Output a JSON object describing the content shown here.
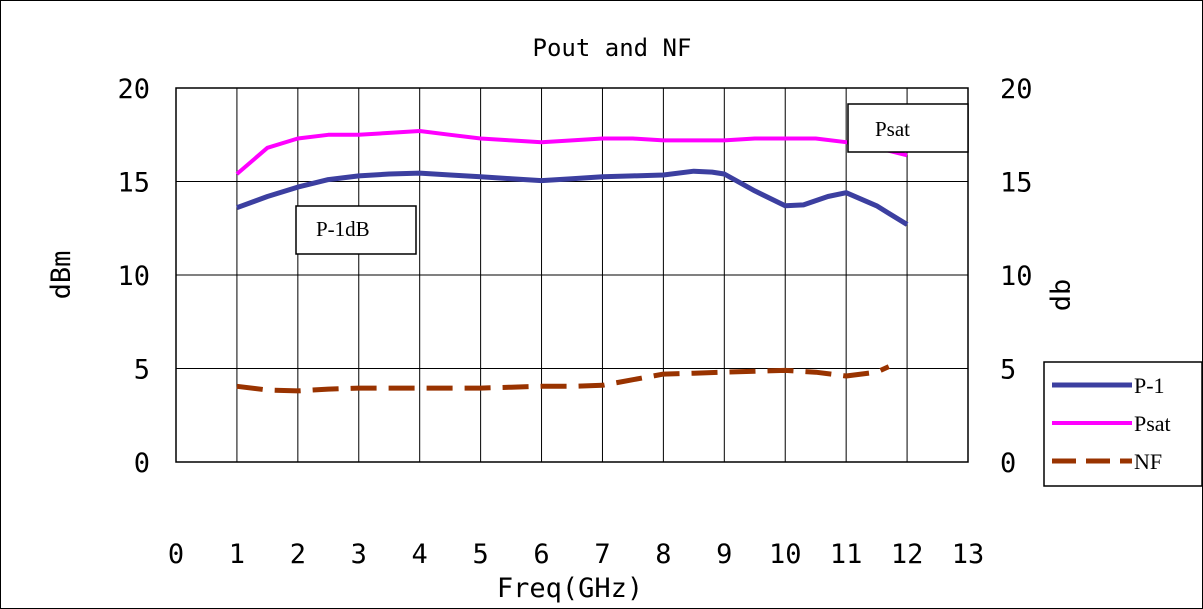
{
  "chart_data": {
    "type": "line",
    "title": "Pout and NF",
    "xlabel": "Freq(GHz)",
    "ylabel": "dBm",
    "ylabel_right": "db",
    "xlim": [
      0,
      13
    ],
    "ylim": [
      0,
      20
    ],
    "x_ticks": [
      "0",
      "1",
      "2",
      "3",
      "4",
      "5",
      "6",
      "7",
      "8",
      "9",
      "10",
      "11",
      "12",
      "13"
    ],
    "y_ticks": [
      "0",
      "5",
      "10",
      "15",
      "20"
    ],
    "y_ticks_right": [
      "0",
      "5",
      "10",
      "15",
      "20"
    ],
    "grid": true,
    "legend_position": "right",
    "series": [
      {
        "name": "P-1",
        "color": "#3c3fa0",
        "style": "solid-thick",
        "x": [
          1,
          1.5,
          2,
          2.5,
          3,
          3.5,
          4,
          4.5,
          5,
          5.5,
          6,
          6.5,
          7,
          7.5,
          8,
          8.5,
          8.8,
          9,
          9.5,
          10,
          10.3,
          10.7,
          11,
          11.5,
          12
        ],
        "y": [
          13.6,
          14.2,
          14.7,
          15.1,
          15.3,
          15.4,
          15.45,
          15.35,
          15.25,
          15.15,
          15.05,
          15.15,
          15.25,
          15.3,
          15.35,
          15.55,
          15.5,
          15.4,
          14.5,
          13.7,
          13.75,
          14.2,
          14.4,
          13.7,
          12.7
        ]
      },
      {
        "name": "Psat",
        "color": "#ff00ff",
        "style": "solid",
        "x": [
          1,
          1.5,
          2,
          2.5,
          3,
          3.5,
          4,
          4.5,
          5,
          5.5,
          6,
          6.5,
          7,
          7.5,
          8,
          8.5,
          9,
          9.5,
          10,
          10.5,
          11,
          11.5,
          12
        ],
        "y": [
          15.4,
          16.8,
          17.3,
          17.5,
          17.5,
          17.6,
          17.7,
          17.5,
          17.3,
          17.2,
          17.1,
          17.2,
          17.3,
          17.3,
          17.2,
          17.2,
          17.2,
          17.3,
          17.3,
          17.3,
          17.1,
          16.8,
          16.4
        ]
      },
      {
        "name": "NF",
        "color": "#993300",
        "style": "dashed",
        "x": [
          1,
          1.5,
          2,
          2.5,
          3,
          3.5,
          4,
          4.5,
          5,
          5.5,
          6,
          6.5,
          7,
          7.5,
          8,
          8.5,
          9,
          9.5,
          10,
          10.5,
          11,
          11.5,
          11.7
        ],
        "y": [
          4.05,
          3.85,
          3.8,
          3.9,
          3.95,
          3.95,
          3.95,
          3.95,
          3.95,
          4.0,
          4.05,
          4.05,
          4.1,
          4.4,
          4.7,
          4.75,
          4.8,
          4.85,
          4.9,
          4.8,
          4.6,
          4.8,
          5.1
        ]
      }
    ],
    "annotations": [
      {
        "text": "Psat",
        "target_series": "Psat"
      },
      {
        "text": "P-1dB",
        "target_series": "P-1"
      }
    ]
  }
}
